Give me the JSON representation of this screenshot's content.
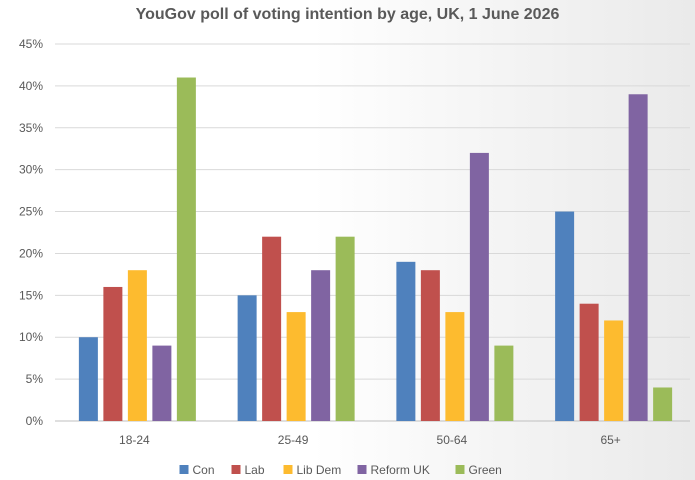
{
  "chart_data": {
    "type": "bar",
    "title": "YouGov poll of voting intention by age, UK, 1 June 2026",
    "xlabel": "",
    "ylabel": "",
    "categories": [
      "18-24",
      "25-49",
      "50-64",
      "65+"
    ],
    "ylim": [
      0,
      45
    ],
    "yticks": [
      "0%",
      "5%",
      "10%",
      "15%",
      "20%",
      "25%",
      "30%",
      "35%",
      "40%",
      "45%"
    ],
    "grid": true,
    "legend_position": "bottom",
    "series": [
      {
        "name": "Con",
        "color": "#4f81bd",
        "values": [
          10,
          15,
          19,
          25
        ]
      },
      {
        "name": "Lab",
        "color": "#c0504d",
        "values": [
          16,
          22,
          18,
          14
        ]
      },
      {
        "name": "Lib Dem",
        "color": "#fdbb2f",
        "values": [
          18,
          13,
          13,
          12
        ]
      },
      {
        "name": "Reform UK",
        "color": "#8064a2",
        "values": [
          9,
          18,
          32,
          39
        ]
      },
      {
        "name": "Green",
        "color": "#9bbb59",
        "values": [
          41,
          22,
          9,
          4
        ]
      }
    ]
  }
}
